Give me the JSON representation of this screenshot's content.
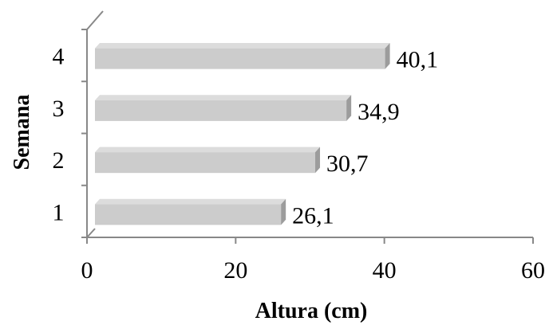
{
  "chart_data": {
    "type": "bar",
    "orientation": "horizontal",
    "categories": [
      "1",
      "2",
      "3",
      "4"
    ],
    "values": [
      26.1,
      30.7,
      34.9,
      40.1
    ],
    "value_labels": [
      "26,1",
      "30,7",
      "34,9",
      "40,1"
    ],
    "xlabel": "Altura (cm)",
    "ylabel": "Semana",
    "xlim": [
      0,
      60
    ],
    "xticks": [
      "0",
      "20",
      "40",
      "60"
    ],
    "grid": false,
    "style": "3d",
    "bar_color": "#cccccc"
  }
}
